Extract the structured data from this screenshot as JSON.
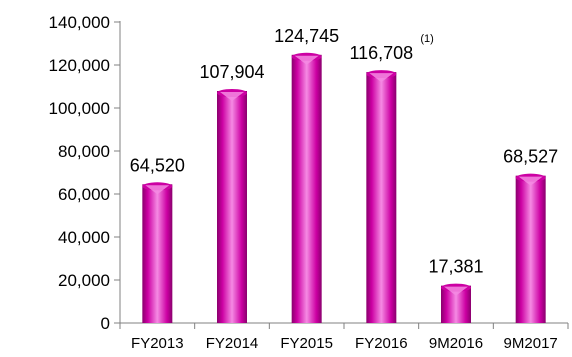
{
  "chart_data": {
    "type": "bar",
    "title": "",
    "xlabel": "",
    "ylabel": "",
    "categories": [
      "FY2013",
      "FY2014",
      "FY2015",
      "FY2016",
      "9M2016",
      "9M2017"
    ],
    "values": [
      64520,
      107904,
      124745,
      116708,
      17381,
      68527
    ],
    "value_labels": [
      "64,520",
      "107,904",
      "124,745",
      "116,708",
      "17,381",
      "68,527"
    ],
    "annotations": [
      {
        "category": "FY2016",
        "text": "(1)"
      }
    ],
    "ylim": [
      0,
      140000
    ],
    "yticks": [
      0,
      20000,
      40000,
      60000,
      80000,
      100000,
      120000,
      140000
    ],
    "ytick_labels": [
      "0",
      "20,000",
      "40,000",
      "60,000",
      "80,000",
      "100,000",
      "120,000",
      "140,000"
    ],
    "grid": false,
    "legend": "none",
    "bar_color": "#cc00a3",
    "bar_highlight_color": "#f58ae3",
    "bar_shadow_color": "#8a006d"
  }
}
